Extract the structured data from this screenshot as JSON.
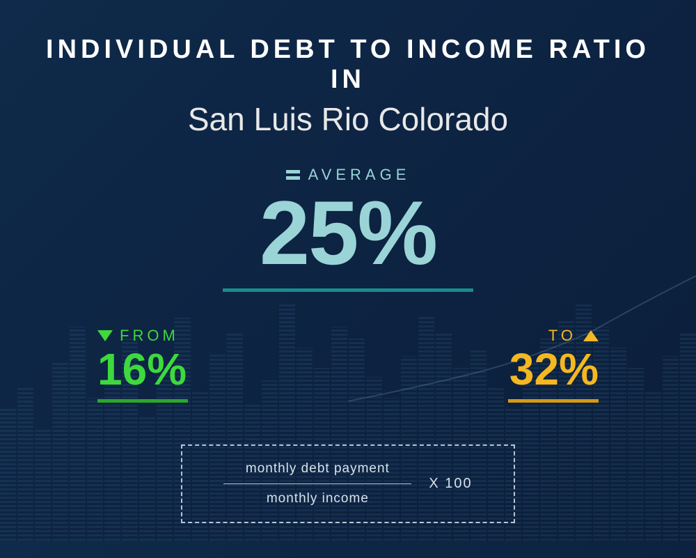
{
  "title": {
    "line1": "INDIVIDUAL  DEBT  TO  INCOME RATIO  IN",
    "line2": "San Luis Rio Colorado"
  },
  "average": {
    "label": "AVERAGE",
    "value": "25%",
    "color": "#9ad4d6",
    "underline_color": "#1a8a8f"
  },
  "range": {
    "from": {
      "label": "FROM",
      "value": "16%",
      "color": "#3dd93d",
      "underline_color": "#2aa82a"
    },
    "to": {
      "label": "TO",
      "value": "32%",
      "color": "#f5b820",
      "underline_color": "#d49a15"
    }
  },
  "formula": {
    "numerator": "monthly debt payment",
    "denominator": "monthly income",
    "multiplier": "X 100",
    "border_color": "#b8c5d6",
    "text_color": "#d8e2ec"
  },
  "background": {
    "gradient_start": "#0f2a4a",
    "gradient_end": "#0b1f3a",
    "bar_heights_pct": [
      45,
      52,
      38,
      60,
      72,
      48,
      55,
      68,
      42,
      58,
      75,
      50,
      63,
      70,
      46,
      54,
      80,
      65,
      58,
      72,
      68,
      55,
      48,
      62,
      76,
      70,
      58,
      64,
      52,
      45,
      60,
      68,
      74,
      80,
      72,
      65,
      58,
      50,
      62,
      70
    ],
    "bar_color": "#4a7ba8",
    "line_path": "M0,200 Q100,180 180,160 T350,100 Q420,60 500,20",
    "line_color": "#7fa8c9"
  },
  "typography": {
    "title_line1_fontsize": 38,
    "title_line2_fontsize": 46,
    "avg_value_fontsize": 130,
    "range_value_fontsize": 64,
    "label_fontsize": 22,
    "formula_fontsize": 19
  }
}
